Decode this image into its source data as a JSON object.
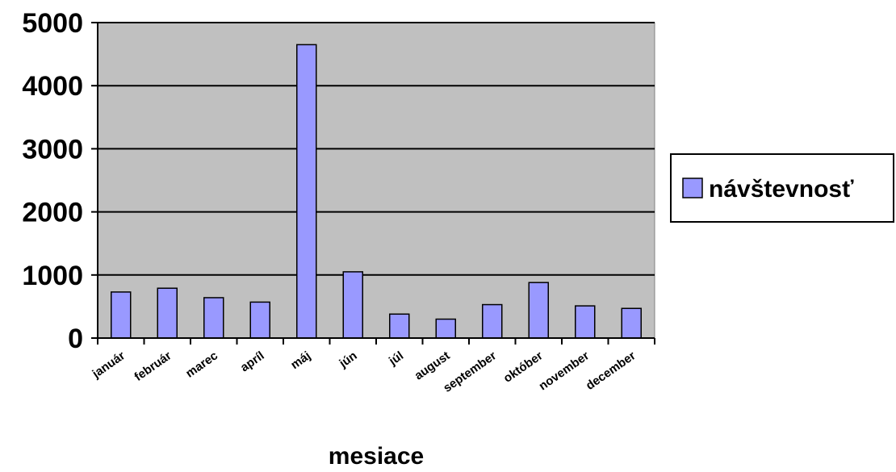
{
  "chart_data": {
    "type": "bar",
    "title": "",
    "xlabel": "mesiace",
    "ylabel": "",
    "categories": [
      "január",
      "február",
      "marec",
      "apríl",
      "máj",
      "jún",
      "júl",
      "august",
      "september",
      "október",
      "november",
      "december"
    ],
    "series": [
      {
        "name": "návštevnosť",
        "color": "#9999ff",
        "values": [
          730,
          790,
          640,
          570,
          4650,
          1050,
          380,
          300,
          530,
          880,
          510,
          470
        ]
      }
    ],
    "ylim": [
      0,
      5000
    ],
    "yticks": [
      0,
      1000,
      2000,
      3000,
      4000,
      5000
    ],
    "grid": true,
    "legend": "right",
    "plot_background": "#c0c0c0"
  }
}
